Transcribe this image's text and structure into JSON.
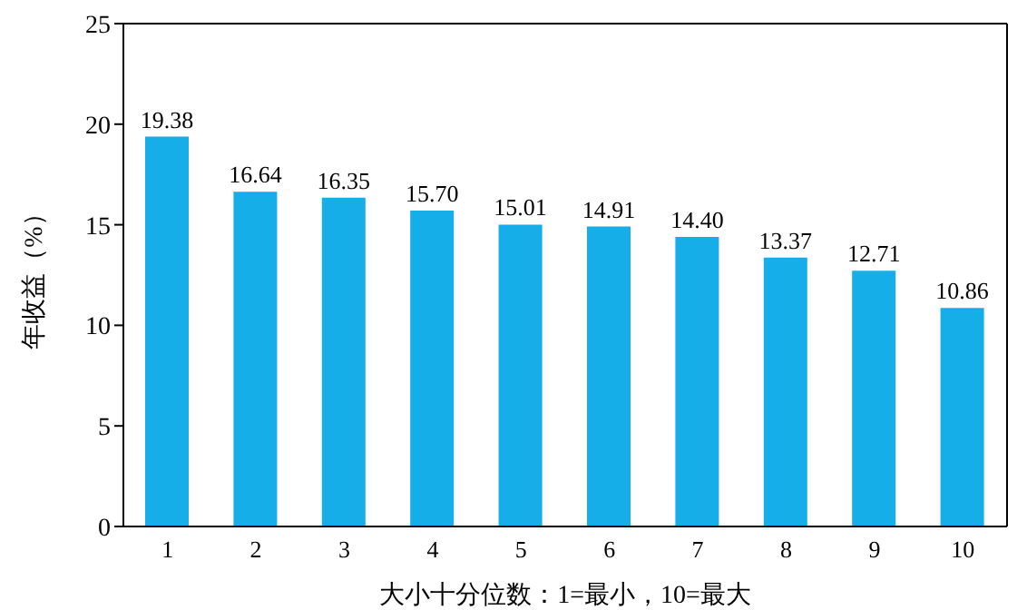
{
  "chart_data": {
    "type": "bar",
    "xlabel": "大小十分位数：1=最小，10=最大",
    "ylabel": "年收益（%）",
    "categories": [
      "1",
      "2",
      "3",
      "4",
      "5",
      "6",
      "7",
      "8",
      "9",
      "10"
    ],
    "values": [
      19.38,
      16.64,
      16.35,
      15.7,
      15.01,
      14.91,
      14.4,
      13.37,
      12.71,
      10.86
    ],
    "value_labels": [
      "19.38",
      "16.64",
      "16.35",
      "15.70",
      "15.01",
      "14.91",
      "14.40",
      "13.37",
      "12.71",
      "10.86"
    ],
    "color": "#15aee8",
    "ylim": [
      0,
      25
    ],
    "yticks": [
      0,
      5,
      10,
      15,
      20,
      25
    ],
    "grid": false
  }
}
